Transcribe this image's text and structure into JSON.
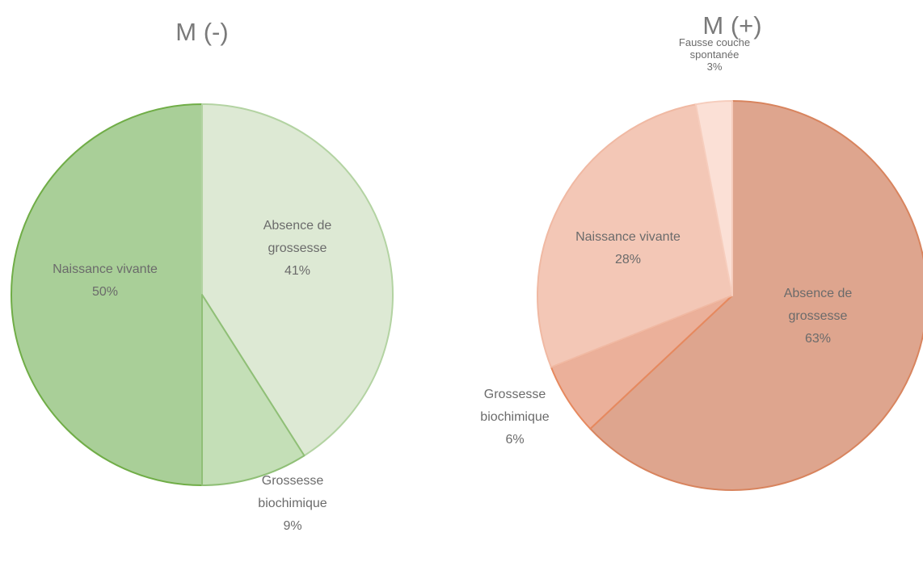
{
  "chart_data": [
    {
      "type": "pie",
      "title": "M (-)",
      "slices": [
        {
          "label_lines": [
            "Naissance vivante"
          ],
          "value": 50,
          "pct": "50%",
          "color": "#a9cf98",
          "stroke": "#70ad47"
        },
        {
          "label_lines": [
            "Absence de",
            "grossesse"
          ],
          "value": 41,
          "pct": "41%",
          "color": "#dde9d4",
          "stroke": "#b3d3a2"
        },
        {
          "label_lines": [
            "Grossesse",
            "biochimique"
          ],
          "value": 9,
          "pct": "9%",
          "color": "#c4dfb7",
          "stroke": "#8fbf76"
        }
      ]
    },
    {
      "type": "pie",
      "title": "M (+)",
      "slices": [
        {
          "label_lines": [
            "Absence de",
            "grossesse"
          ],
          "value": 63,
          "pct": "63%",
          "color": "#dea58e",
          "stroke": "#d8845e"
        },
        {
          "label_lines": [
            "Grossesse",
            "biochimique"
          ],
          "value": 6,
          "pct": "6%",
          "color": "#ebb09a",
          "stroke": "#e6895f"
        },
        {
          "label_lines": [
            "Naissance vivante"
          ],
          "value": 28,
          "pct": "28%",
          "color": "#f3c7b6",
          "stroke": "#f0b9a3"
        },
        {
          "label_lines": [
            "Fausse couche",
            "spontanée"
          ],
          "value": 3,
          "pct": "3%",
          "color": "#fbe0d6",
          "stroke": "#f6cdbd"
        }
      ]
    }
  ]
}
